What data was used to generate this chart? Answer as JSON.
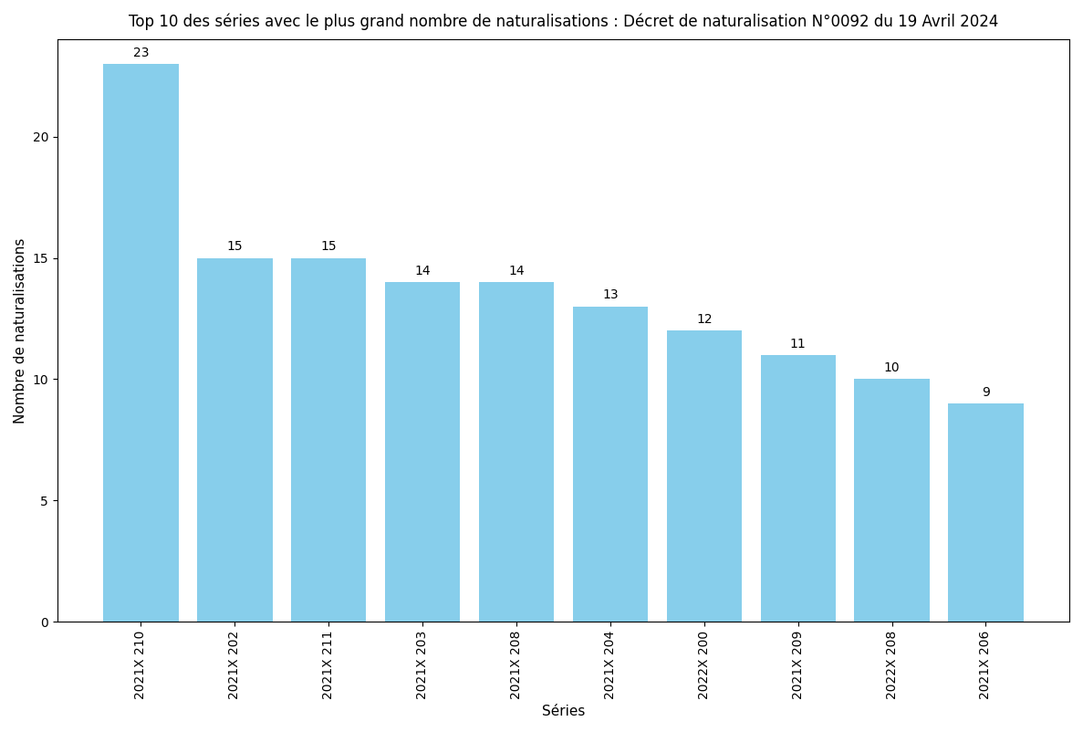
{
  "title": "Top 10 des séries avec le plus grand nombre de naturalisations : Décret de naturalisation N°0092 du 19 Avril 2024",
  "xlabel": "Séries",
  "ylabel": "Nombre de naturalisations",
  "categories": [
    "2021X 210",
    "2021X 202",
    "2021X 211",
    "2021X 203",
    "2021X 208",
    "2021X 204",
    "2022X 200",
    "2021X 209",
    "2022X 208",
    "2021X 206"
  ],
  "values": [
    23,
    15,
    15,
    14,
    14,
    13,
    12,
    11,
    10,
    9
  ],
  "bar_color": "#87CEEB",
  "ylim": [
    0,
    24
  ],
  "yticks": [
    0,
    5,
    10,
    15,
    20
  ],
  "title_fontsize": 12,
  "label_fontsize": 11,
  "tick_fontsize": 10,
  "annotation_fontsize": 10,
  "figsize": [
    11.87,
    8.02
  ],
  "dpi": 100,
  "bar_width": 0.8
}
